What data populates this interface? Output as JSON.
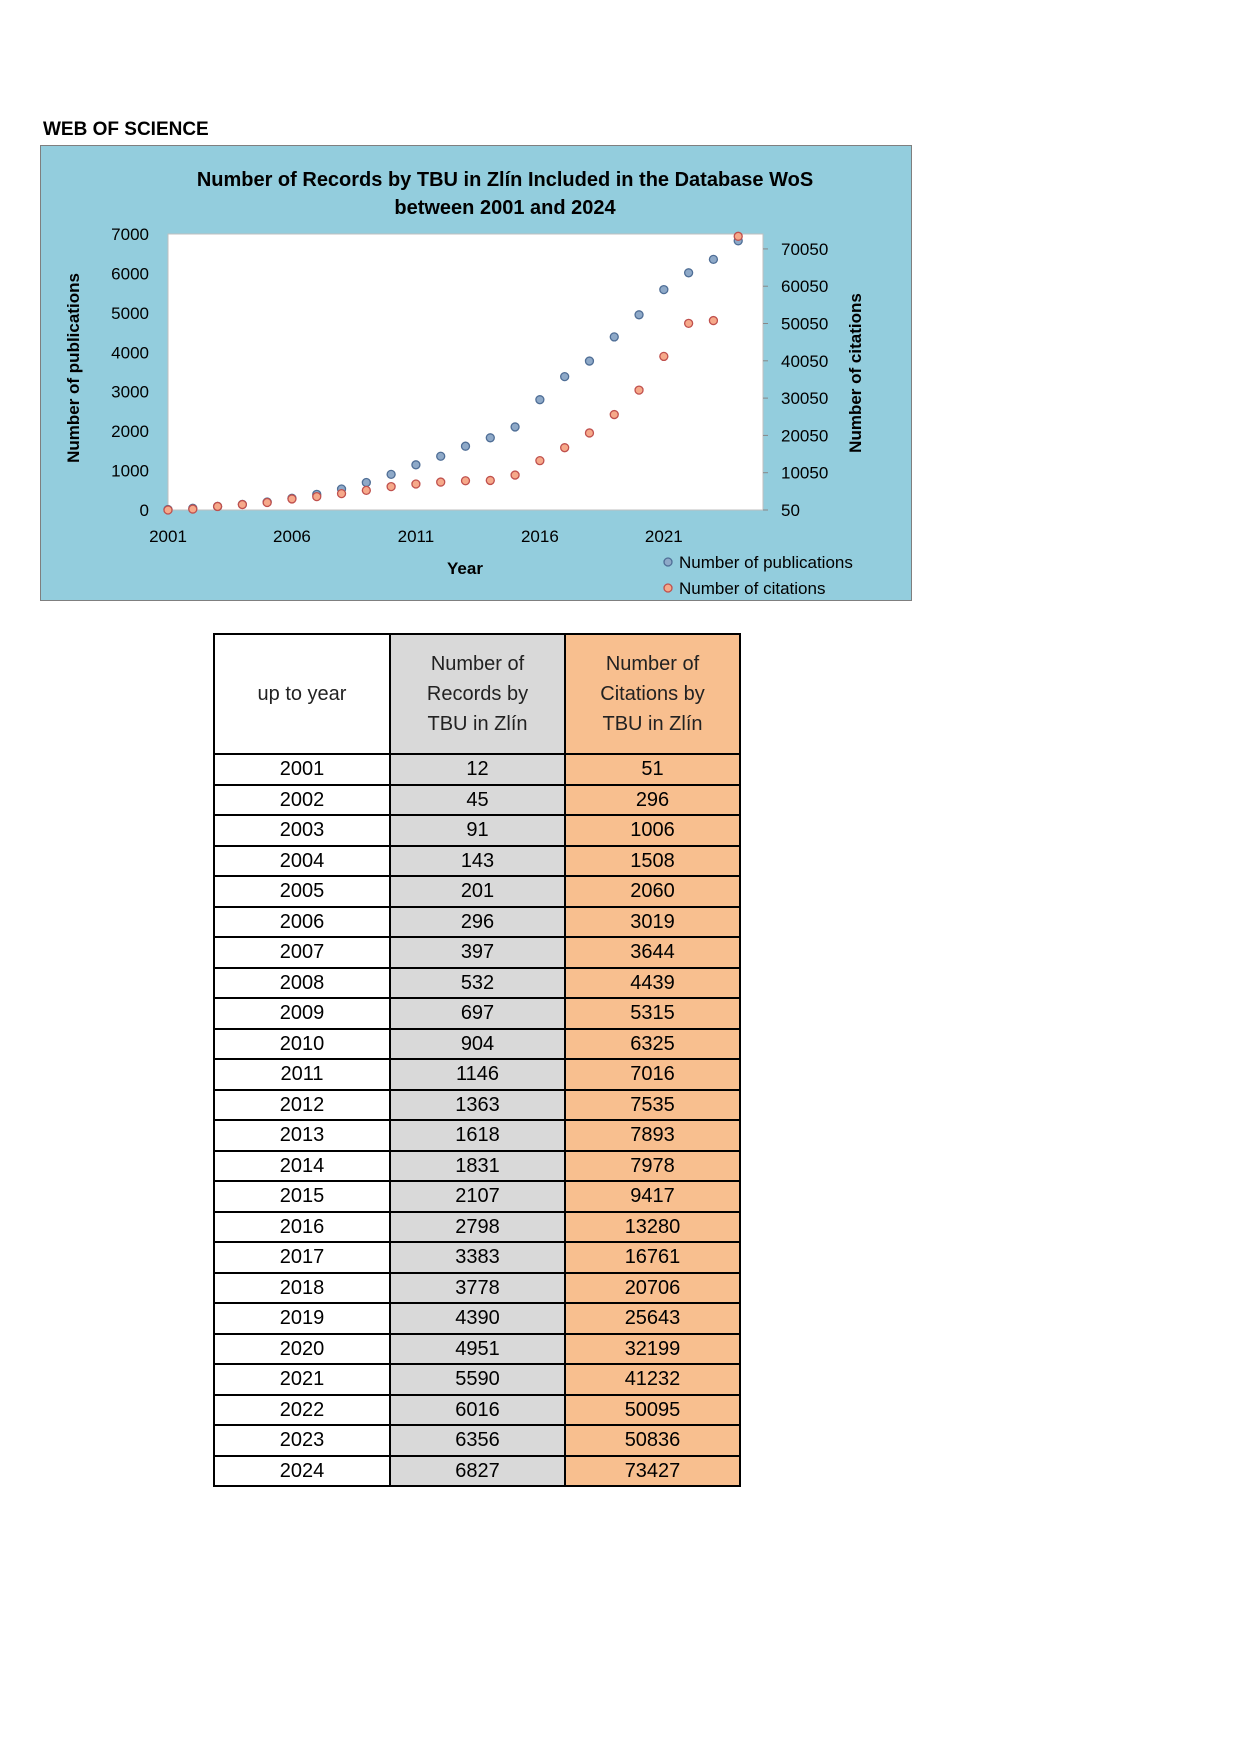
{
  "heading": "WEB OF SCIENCE",
  "chart_data": {
    "type": "scatter",
    "title": [
      "Number of Records by TBU in Zlín Included in the Database  WoS",
      "between 2001 and 2024"
    ],
    "xlabel": "Year",
    "ylabel": "Number of publications",
    "y2label": "Number of citations",
    "x": [
      2001,
      2002,
      2003,
      2004,
      2005,
      2006,
      2007,
      2008,
      2009,
      2010,
      2011,
      2012,
      2013,
      2014,
      2015,
      2016,
      2017,
      2018,
      2019,
      2020,
      2021,
      2022,
      2023,
      2024
    ],
    "series": [
      {
        "name": "Number of publications",
        "axis": "left",
        "color": "#8EA9C8",
        "stroke": "#4F6E96",
        "values": [
          12,
          45,
          91,
          143,
          201,
          296,
          397,
          532,
          697,
          904,
          1146,
          1363,
          1618,
          1831,
          2107,
          2798,
          3383,
          3778,
          4390,
          4951,
          5590,
          6016,
          6356,
          6827
        ]
      },
      {
        "name": "Number of citations",
        "axis": "right",
        "color": "#F6A98A",
        "stroke": "#C0504D",
        "values": [
          51,
          296,
          1006,
          1508,
          2060,
          3019,
          3644,
          4439,
          5315,
          6325,
          7016,
          7535,
          7893,
          7978,
          9417,
          13280,
          16761,
          20706,
          25643,
          32199,
          41232,
          50095,
          50836,
          73427
        ]
      }
    ],
    "xlim": [
      2001,
      2025
    ],
    "xticks": [
      "2001",
      "2006",
      "2011",
      "2016",
      "2021"
    ],
    "ylim": [
      0,
      7000
    ],
    "yticks": [
      "0",
      "1000",
      "2000",
      "3000",
      "4000",
      "5000",
      "6000",
      "7000"
    ],
    "y2lim": [
      50,
      74050
    ],
    "y2ticks": [
      "50",
      "10050",
      "20050",
      "30050",
      "40050",
      "50050",
      "60050",
      "70050"
    ],
    "legend_position": "bottom-right",
    "background": "#93CDDD"
  },
  "table": {
    "headers": [
      "up to year",
      "Number of Records by TBU in Zlín",
      "Number of Citations by TBU in Zlín"
    ],
    "rows": [
      [
        "2001",
        "12",
        "51"
      ],
      [
        "2002",
        "45",
        "296"
      ],
      [
        "2003",
        "91",
        "1006"
      ],
      [
        "2004",
        "143",
        "1508"
      ],
      [
        "2005",
        "201",
        "2060"
      ],
      [
        "2006",
        "296",
        "3019"
      ],
      [
        "2007",
        "397",
        "3644"
      ],
      [
        "2008",
        "532",
        "4439"
      ],
      [
        "2009",
        "697",
        "5315"
      ],
      [
        "2010",
        "904",
        "6325"
      ],
      [
        "2011",
        "1146",
        "7016"
      ],
      [
        "2012",
        "1363",
        "7535"
      ],
      [
        "2013",
        "1618",
        "7893"
      ],
      [
        "2014",
        "1831",
        "7978"
      ],
      [
        "2015",
        "2107",
        "9417"
      ],
      [
        "2016",
        "2798",
        "13280"
      ],
      [
        "2017",
        "3383",
        "16761"
      ],
      [
        "2018",
        "3778",
        "20706"
      ],
      [
        "2019",
        "4390",
        "25643"
      ],
      [
        "2020",
        "4951",
        "32199"
      ],
      [
        "2021",
        "5590",
        "41232"
      ],
      [
        "2022",
        "6016",
        "50095"
      ],
      [
        "2023",
        "6356",
        "50836"
      ],
      [
        "2024",
        "6827",
        "73427"
      ]
    ]
  }
}
